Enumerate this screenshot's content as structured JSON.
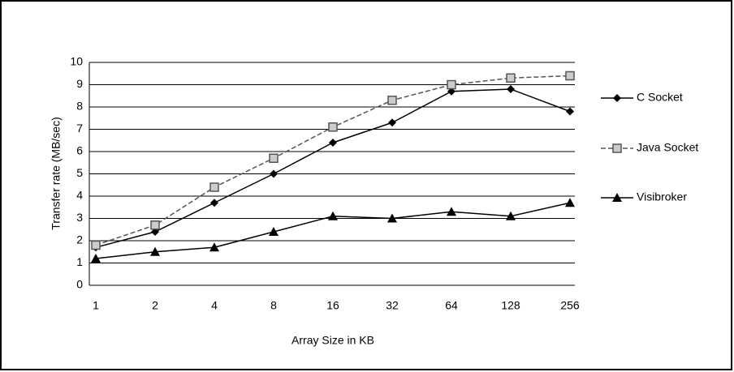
{
  "chart_data": {
    "type": "line",
    "x_label": "Array Size in KB",
    "y_label": "Transfer rate (MB/sec)",
    "categories": [
      "1",
      "2",
      "4",
      "8",
      "16",
      "32",
      "64",
      "128",
      "256"
    ],
    "series": [
      {
        "name": "C Socket",
        "color": "#000000",
        "marker": "diamond",
        "dashed": false,
        "values": [
          1.7,
          2.4,
          3.7,
          5.0,
          6.4,
          7.3,
          8.7,
          8.8,
          7.8
        ]
      },
      {
        "name": "Java Socket",
        "color": "#555555",
        "marker": "square",
        "dashed": true,
        "values": [
          1.8,
          2.7,
          4.4,
          5.7,
          7.1,
          8.3,
          9.0,
          9.3,
          9.4
        ]
      },
      {
        "name": "Visibroker",
        "color": "#000000",
        "marker": "triangle",
        "dashed": false,
        "values": [
          1.2,
          1.5,
          1.7,
          2.4,
          3.1,
          3.0,
          3.3,
          3.1,
          3.7
        ]
      }
    ],
    "ylim": [
      0,
      10
    ],
    "yticks": [
      0,
      1,
      2,
      3,
      4,
      5,
      6,
      7,
      8,
      9,
      10
    ],
    "grid": true,
    "legend": "right"
  }
}
